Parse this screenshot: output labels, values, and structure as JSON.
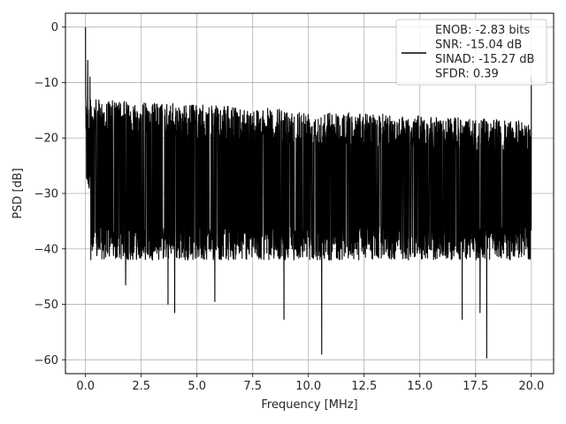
{
  "chart_data": {
    "type": "line",
    "title": "",
    "xlabel": "Frequency [MHz]",
    "ylabel": "PSD [dB]",
    "xlim": [
      -0.9,
      21.0
    ],
    "ylim": [
      -62.5,
      2.5
    ],
    "xticks": [
      0.0,
      2.5,
      5.0,
      7.5,
      10.0,
      12.5,
      15.0,
      17.5,
      20.0
    ],
    "xtick_labels": [
      "0.0",
      "2.5",
      "5.0",
      "7.5",
      "10.0",
      "12.5",
      "15.0",
      "17.5",
      "20.0"
    ],
    "yticks": [
      0,
      -10,
      -20,
      -30,
      -40,
      -50,
      -60
    ],
    "ytick_labels": [
      "0",
      "−10",
      "−20",
      "−30",
      "−40",
      "−50",
      "−60"
    ],
    "grid": true,
    "legend_position": "top-right",
    "series": [
      {
        "name": "",
        "color": "#000000",
        "x_range": [
          0.0,
          20.0
        ],
        "noise_floor_db": -29,
        "noise_band_db": [
          -42,
          -15
        ],
        "peak_db": 0,
        "highlights": [
          {
            "x": 0.0,
            "y": 0
          },
          {
            "x": 0.1,
            "y": -6
          },
          {
            "x": 0.2,
            "y": -9
          },
          {
            "x": 1.8,
            "y": -46.5
          },
          {
            "x": 3.7,
            "y": -50
          },
          {
            "x": 4.0,
            "y": -51.5
          },
          {
            "x": 5.8,
            "y": -49.5
          },
          {
            "x": 8.9,
            "y": -52.7
          },
          {
            "x": 10.6,
            "y": -59
          },
          {
            "x": 16.9,
            "y": -52.7
          },
          {
            "x": 17.7,
            "y": -51.5
          },
          {
            "x": 18.0,
            "y": -59.7
          },
          {
            "x": 20.0,
            "y": -9
          }
        ]
      }
    ],
    "legend": {
      "lines": [
        "ENOB: -2.83 bits",
        "SNR: -15.04 dB",
        "SINAD: -15.27 dB",
        "SFDR: 0.39"
      ]
    }
  },
  "colors": {
    "axes": "#000000",
    "grid": "#b0b0b0",
    "line": "#000000",
    "legend_border": "#cccccc"
  }
}
